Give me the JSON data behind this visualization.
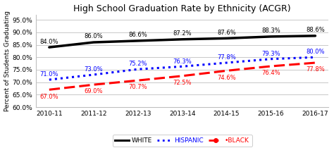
{
  "title": "High School Graduation Rate by Ethnicity (ACGR)",
  "ylabel": "Percent of Students Graduating",
  "categories": [
    "2010-11",
    "2011-12",
    "2012-13",
    "2013-14",
    "2014-15",
    "2015-16",
    "2016-17"
  ],
  "white": [
    84.0,
    86.0,
    86.6,
    87.2,
    87.6,
    88.3,
    88.6
  ],
  "hispanic": [
    71.0,
    73.0,
    75.2,
    76.3,
    77.8,
    79.3,
    80.0
  ],
  "black": [
    67.0,
    69.0,
    70.7,
    72.5,
    74.6,
    76.4,
    77.8
  ],
  "white_annot_yoff": [
    1.0,
    1.0,
    1.0,
    1.0,
    1.0,
    1.0,
    1.0
  ],
  "hispanic_annot_yoff": [
    0.8,
    0.8,
    0.8,
    0.8,
    0.8,
    0.8,
    0.8
  ],
  "black_annot_yoff": [
    -1.5,
    -1.5,
    -1.5,
    -1.5,
    -1.5,
    -1.5,
    -1.5
  ],
  "ylim": [
    60.0,
    97.0
  ],
  "yticks": [
    60.0,
    65.0,
    70.0,
    75.0,
    80.0,
    85.0,
    90.0,
    95.0
  ],
  "white_color": "#000000",
  "hispanic_color": "#0000FF",
  "black_color": "#FF0000",
  "plot_bg": "#FFFFFF",
  "fig_bg": "#FFFFFF",
  "grid_color": "#C0C0C0",
  "title_fontsize": 9,
  "label_fontsize": 6.5,
  "tick_fontsize": 6.5,
  "annot_fontsize": 6.0,
  "legend_fontsize": 6.5,
  "white_lw": 2.5,
  "hispanic_lw": 2.2,
  "black_lw": 2.2
}
